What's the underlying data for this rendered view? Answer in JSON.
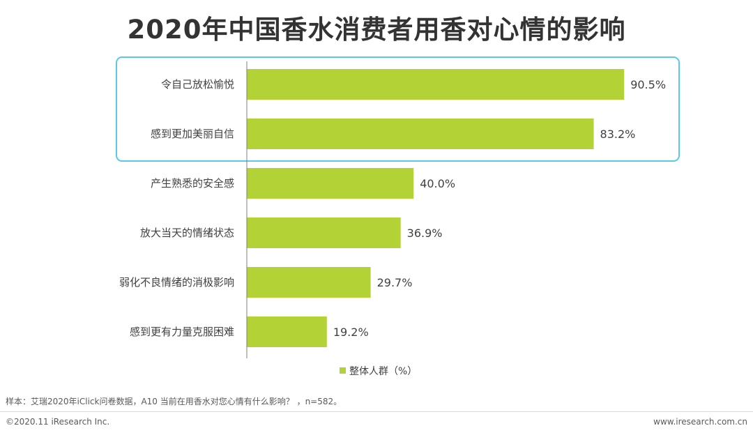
{
  "chart_data": {
    "type": "bar",
    "orientation": "horizontal",
    "title": "2020年中国香水消费者用香对心情的影响",
    "categories": [
      "令自己放松愉悦",
      "感到更加美丽自信",
      "产生熟悉的安全感",
      "放大当天的情绪状态",
      "弱化不良情绪的消极影响",
      "感到更有力量克服困难"
    ],
    "series": [
      {
        "name": "整体人群（%）",
        "values": [
          90.5,
          83.2,
          40.0,
          36.9,
          29.7,
          19.2
        ]
      }
    ],
    "value_labels": [
      "90.5%",
      "83.2%",
      "40.0%",
      "36.9%",
      "29.7%",
      "19.2%"
    ],
    "xlim": [
      0,
      100
    ],
    "legend_position": "bottom",
    "highlight_categories": [
      "令自己放松愉悦",
      "感到更加美丽自信"
    ],
    "colors": {
      "bar": "#b2d235",
      "highlight_border": "#5bc8e8",
      "axis": "#7f7f7f"
    }
  },
  "footer": {
    "source": "样本：艾瑞2020年iClick问卷数据，A10 当前在用香水对您心情有什么影响？ ，n=582。",
    "copyright": "©2020.11 iResearch Inc.",
    "website": "www.iresearch.com.cn"
  }
}
